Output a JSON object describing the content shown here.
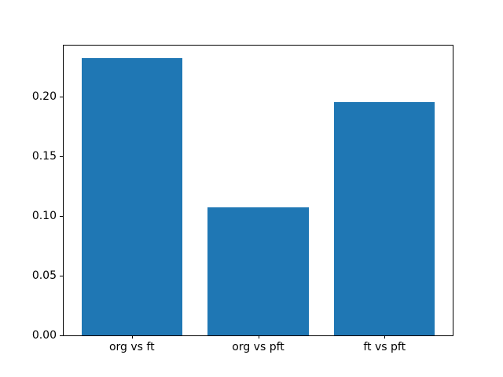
{
  "figure": {
    "background": "#ffffff"
  },
  "chart_data": {
    "type": "bar",
    "categories": [
      "org vs ft",
      "org vs pft",
      "ft vs pft"
    ],
    "values": [
      0.232,
      0.107,
      0.195
    ],
    "title": "",
    "xlabel": "",
    "ylabel": "",
    "ylim": [
      0,
      0.2424
    ],
    "yticks": [
      0.0,
      0.05,
      0.1,
      0.15,
      0.2
    ],
    "ytick_labels": [
      "0.00",
      "0.05",
      "0.10",
      "0.15",
      "0.20"
    ],
    "bar_color": "#1f77b4",
    "axis_color": "#000000",
    "grid": false,
    "legend": null
  }
}
